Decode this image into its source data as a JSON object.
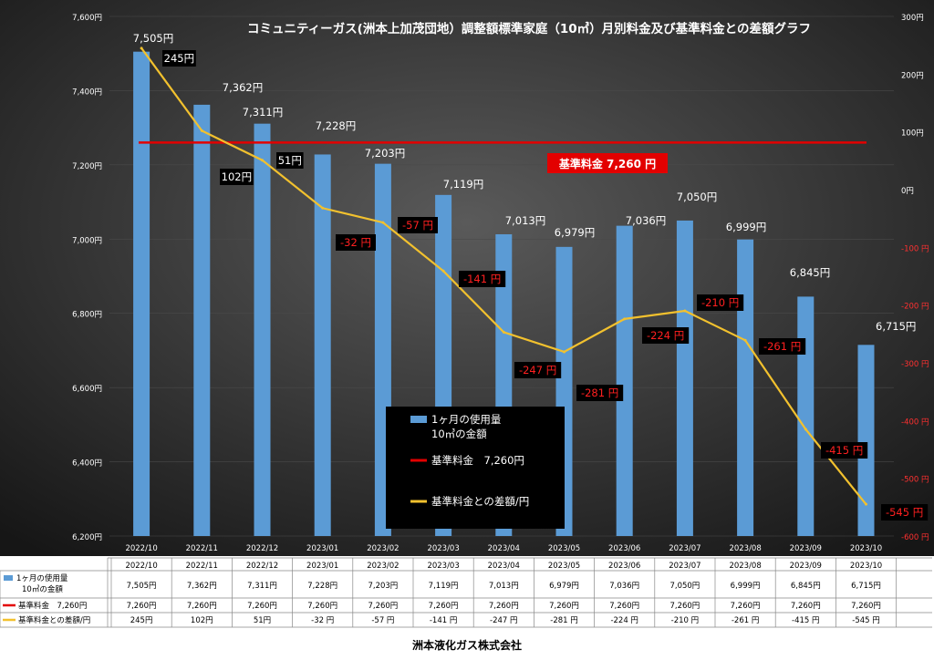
{
  "chart_data": {
    "type": "bar",
    "title": "コミュニティーガス(洲本上加茂団地）調整額標準家庭（10㎥）月別料金及び基準料金との差額グラフ",
    "categories": [
      "2022/10",
      "2022/11",
      "2022/12",
      "2023/01",
      "2023/02",
      "2023/03",
      "2023/04",
      "2023/05",
      "2023/06",
      "2023/07",
      "2023/08",
      "2023/09",
      "2023/10"
    ],
    "y_left": {
      "min": 6200,
      "max": 7600,
      "ticks": [
        "6,200円",
        "6,400円",
        "6,600円",
        "6,800円",
        "7,000円",
        "7,200円",
        "7,400円",
        "7,600円"
      ]
    },
    "y_right": {
      "min": -600,
      "max": 300,
      "ticks": [
        "300円",
        "200円",
        "100円",
        "0円",
        "-100 円",
        "-200 円",
        "-300 円",
        "-400 円",
        "-500 円",
        "-600 円"
      ]
    },
    "series": [
      {
        "name": "1ヶ月の使用量 10㎥の金額",
        "type": "bar",
        "axis": "left",
        "color": "#5b9bd5",
        "values": [
          7505,
          7362,
          7311,
          7228,
          7203,
          7119,
          7013,
          6979,
          7036,
          7050,
          6999,
          6845,
          6715
        ],
        "labels": [
          "7,505円",
          "7,362円",
          "7,311円",
          "7,228円",
          "7,203円",
          "7,119円",
          "7,013円",
          "6,979円",
          "7,036円",
          "7,050円",
          "6,999円",
          "6,845円",
          "6,715円"
        ]
      },
      {
        "name": "基準料金 7,260円",
        "type": "line",
        "axis": "left",
        "color": "#e30000",
        "value": 7260,
        "annotation": "基準料金 7,260 円",
        "labels": [
          "7,260円",
          "7,260円",
          "7,260円",
          "7,260円",
          "7,260円",
          "7,260円",
          "7,260円",
          "7,260円",
          "7,260円",
          "7,260円",
          "7,260円",
          "7,260円",
          "7,260円"
        ]
      },
      {
        "name": "基準料金との差額/円",
        "type": "line",
        "axis": "right",
        "color": "#f2c12e",
        "values": [
          245,
          102,
          51,
          -32,
          -57,
          -141,
          -247,
          -281,
          -224,
          -210,
          -261,
          -415,
          -545
        ],
        "labels": [
          "245円",
          "102円",
          "51円",
          "-32 円",
          "-57 円",
          "-141 円",
          "-247 円",
          "-281 円",
          "-224 円",
          "-210 円",
          "-261 円",
          "-415 円",
          "-545 円"
        ]
      }
    ],
    "legend": {
      "placement": "center-bottom",
      "bar": "1ヶ月の使用量",
      "bar_sub": "10㎥の金額",
      "base": "基準料金　7,260円",
      "diff": "基準料金との差額/円"
    },
    "table": {
      "row_labels": [
        "1ヶ月の使用量",
        "10㎥の金額",
        "基準料金　7,260円",
        "基準料金との差額/円"
      ]
    }
  },
  "footer": "洲本液化ガス株式会社"
}
